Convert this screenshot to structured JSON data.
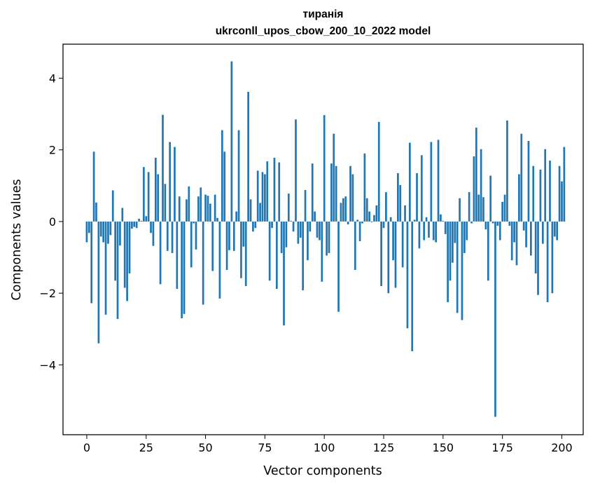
{
  "chart_data": {
    "type": "bar",
    "title": "тиранія",
    "subtitle": "ukrconll_upos_cbow_200_10_2022 model",
    "xlabel": "Vector components",
    "ylabel": "Components values",
    "xlim": [
      -10,
      209
    ],
    "ylim": [
      -5.95,
      4.95
    ],
    "xticks": [
      0,
      25,
      50,
      75,
      100,
      125,
      150,
      175,
      200
    ],
    "yticks": [
      -4,
      -2,
      0,
      2,
      4
    ],
    "ytick_labels": [
      "−4",
      "−2",
      "0",
      "2",
      "4"
    ],
    "color": "#1f77b4",
    "series": [
      {
        "name": "components",
        "values": [
          -0.58,
          -0.32,
          -2.28,
          1.95,
          0.53,
          -3.4,
          -0.42,
          -0.58,
          -2.6,
          -0.62,
          -0.38,
          0.87,
          -1.65,
          -2.72,
          -0.67,
          0.38,
          -1.85,
          -2.22,
          -1.45,
          -0.2,
          -0.15,
          -0.18,
          0.08,
          0.02,
          1.52,
          0.15,
          1.38,
          -0.32,
          -0.68,
          1.78,
          1.32,
          -1.75,
          2.98,
          1.05,
          -0.82,
          2.22,
          -0.88,
          2.08,
          -1.88,
          0.7,
          -2.7,
          -2.58,
          0.62,
          0.98,
          -1.28,
          -0.05,
          -0.78,
          0.7,
          0.95,
          -2.32,
          0.75,
          0.72,
          0.5,
          -1.38,
          0.75,
          0.1,
          -2.15,
          2.55,
          1.95,
          -1.35,
          -0.8,
          4.47,
          -0.82,
          0.28,
          2.55,
          -1.58,
          -0.7,
          -1.8,
          3.62,
          0.62,
          -0.28,
          -0.18,
          1.42,
          0.52,
          1.38,
          1.32,
          1.68,
          -1.65,
          -0.18,
          1.78,
          -1.88,
          1.65,
          -0.88,
          -2.9,
          -0.72,
          0.78,
          0.02,
          -0.28,
          2.85,
          -0.62,
          -0.45,
          -1.92,
          0.88,
          -1.08,
          -0.28,
          1.62,
          0.28,
          -0.45,
          -0.52,
          -1.68,
          2.97,
          -0.95,
          -0.88,
          1.62,
          2.45,
          1.55,
          -2.52,
          0.52,
          0.65,
          0.7,
          -0.08,
          1.55,
          1.32,
          -1.35,
          0.05,
          -0.55,
          -0.05,
          1.9,
          0.65,
          0.28,
          -0.02,
          0.18,
          0.45,
          2.78,
          -1.8,
          -0.18,
          0.82,
          -2.0,
          0.12,
          -1.08,
          -1.85,
          1.35,
          1.02,
          -1.28,
          0.45,
          -2.98,
          2.2,
          -3.62,
          0.05,
          1.35,
          -0.75,
          1.85,
          -0.52,
          0.12,
          -0.45,
          2.22,
          -0.52,
          -0.58,
          2.28,
          0.2,
          0.02,
          -0.35,
          -2.25,
          -1.65,
          -1.15,
          -0.6,
          -2.55,
          0.65,
          -2.75,
          -0.88,
          -0.52,
          0.82,
          -0.05,
          1.82,
          2.62,
          0.75,
          2.02,
          0.68,
          -0.22,
          -1.65,
          1.28,
          -0.05,
          -5.45,
          -0.12,
          -0.52,
          0.55,
          0.75,
          2.82,
          -0.12,
          -1.08,
          -0.58,
          -1.22,
          1.32,
          2.45,
          -0.25,
          -0.72,
          2.25,
          -0.95,
          1.55,
          -1.45,
          -2.05,
          1.45,
          -0.62,
          2.02,
          -2.25,
          1.7,
          -2.0,
          -0.42,
          -0.52,
          1.55,
          1.12,
          2.08
        ]
      }
    ]
  }
}
